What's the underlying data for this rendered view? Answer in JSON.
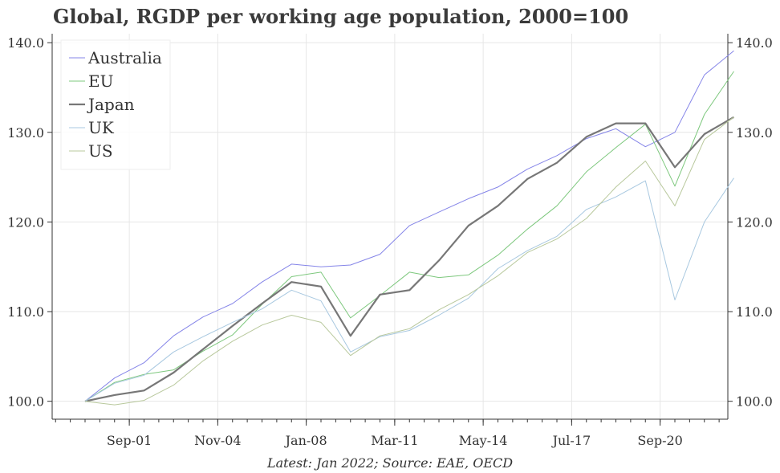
{
  "chart_data": {
    "type": "line",
    "title": "Global, RGDP per working age population, 2000=100",
    "footnote": "Latest: Jan 2022; Source: EAE, OECD",
    "xlabel": "",
    "ylabel": "",
    "x_ticks": [
      "Sep-01",
      "Nov-04",
      "Jan-08",
      "Mar-11",
      "May-14",
      "Jul-17",
      "Sep-20"
    ],
    "x_tick_index": [
      1.5,
      4.5,
      7.5,
      10.5,
      13.5,
      16.5,
      19.5
    ],
    "y_ticks": [
      "100.0",
      "110.0",
      "120.0",
      "130.0",
      "140.0"
    ],
    "ylim": [
      98,
      141
    ],
    "grid": true,
    "legend_position": "top-left",
    "x": [
      "2000",
      "2001",
      "2002",
      "2003",
      "2004",
      "2005",
      "2006",
      "2007",
      "2008",
      "2009",
      "2010",
      "2011",
      "2012",
      "2013",
      "2014",
      "2015",
      "2016",
      "2017",
      "2018",
      "2019",
      "2020",
      "2021",
      "2022"
    ],
    "series": [
      {
        "name": "Australia",
        "color": "#8585e8",
        "width": 1,
        "values": [
          100,
          102.6,
          104.3,
          107.3,
          109.4,
          110.9,
          113.3,
          115.3,
          115.0,
          115.2,
          116.4,
          119.6,
          121.1,
          122.6,
          123.9,
          125.9,
          127.4,
          129.3,
          130.4,
          128.4,
          130.0,
          136.4,
          139.1
        ]
      },
      {
        "name": "EU",
        "color": "#7ec87e",
        "width": 1,
        "values": [
          100,
          102.1,
          103.0,
          103.5,
          105.6,
          107.4,
          110.8,
          113.9,
          114.4,
          109.3,
          111.8,
          114.4,
          113.8,
          114.1,
          116.3,
          119.2,
          121.8,
          125.6,
          128.3,
          130.9,
          124.0,
          132.0,
          136.8
        ]
      },
      {
        "name": "Japan",
        "color": "#777777",
        "width": 2.2,
        "values": [
          100,
          100.7,
          101.2,
          103.2,
          105.8,
          108.4,
          110.9,
          113.3,
          112.8,
          107.3,
          111.9,
          112.4,
          115.7,
          119.6,
          121.8,
          124.8,
          126.6,
          129.5,
          131.0,
          131.0,
          126.1,
          129.8,
          131.7
        ]
      },
      {
        "name": "UK",
        "color": "#a8c8e0",
        "width": 1,
        "values": [
          100,
          102.0,
          102.9,
          105.5,
          107.2,
          108.8,
          110.3,
          112.4,
          111.2,
          105.5,
          107.2,
          107.9,
          109.6,
          111.5,
          114.8,
          116.8,
          118.4,
          121.4,
          122.8,
          124.6,
          111.3,
          120.0,
          124.9
        ]
      },
      {
        "name": "US",
        "color": "#b8c89c",
        "width": 1,
        "values": [
          100,
          99.6,
          100.1,
          101.8,
          104.5,
          106.7,
          108.5,
          109.6,
          108.8,
          105.1,
          107.3,
          108.1,
          110.2,
          111.9,
          114.0,
          116.6,
          118.1,
          120.4,
          123.9,
          126.8,
          121.8,
          129.2,
          131.7
        ]
      }
    ]
  }
}
